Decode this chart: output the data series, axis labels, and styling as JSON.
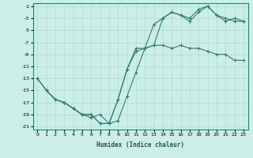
{
  "xlabel": "Humidex (Indice chaleur)",
  "ylabel": "",
  "bg_color": "#cceee8",
  "grid_color": "#aaddcc",
  "line_color": "#2e7d6e",
  "xlim": [
    -0.5,
    23.5
  ],
  "ylim": [
    -21.5,
    -0.5
  ],
  "xticks": [
    0,
    1,
    2,
    3,
    4,
    5,
    6,
    7,
    8,
    9,
    10,
    11,
    12,
    13,
    14,
    15,
    16,
    17,
    18,
    19,
    20,
    21,
    22,
    23
  ],
  "yticks": [
    -1,
    -3,
    -5,
    -7,
    -9,
    -11,
    -13,
    -15,
    -17,
    -19,
    -21
  ],
  "series1_x": [
    0,
    1,
    2,
    3,
    4,
    5,
    6,
    7,
    8,
    9,
    10,
    11,
    12,
    13,
    14,
    15,
    16,
    17,
    18,
    19,
    20,
    21,
    22,
    23
  ],
  "series1_y": [
    -13,
    -15,
    -16.5,
    -17,
    -18,
    -19,
    -19,
    -20.5,
    -20.5,
    -16.5,
    -11.5,
    -8,
    -8,
    -4,
    -3,
    -2,
    -2.5,
    -3,
    -1.5,
    -1,
    -2.5,
    -3,
    -3.5,
    -3.5
  ],
  "series2_x": [
    0,
    1,
    2,
    3,
    4,
    5,
    6,
    7,
    8,
    9,
    10,
    11,
    12,
    13,
    14,
    15,
    16,
    17,
    18,
    19,
    20,
    21,
    22,
    23
  ],
  "series2_y": [
    -13,
    -15,
    -16.5,
    -17,
    -18,
    -19,
    -19,
    -20.5,
    -20.5,
    -16.5,
    -11.5,
    -8.5,
    -8,
    -7.5,
    -7.5,
    -8,
    -7.5,
    -8,
    -8,
    -8.5,
    -9,
    -9,
    -10,
    -10
  ],
  "series3_x": [
    1,
    2,
    3,
    4,
    5,
    6,
    7,
    8,
    9,
    10,
    11,
    12,
    13,
    14,
    15,
    16,
    17,
    18,
    19,
    20,
    21,
    22,
    23
  ],
  "series3_y": [
    -15,
    -16.5,
    -17,
    -18,
    -19,
    -19.5,
    -19,
    -20.5,
    -20,
    -16,
    -12,
    -8,
    -7.5,
    -3,
    -2,
    -2.5,
    -3.5,
    -2,
    -1,
    -2.5,
    -3.5,
    -3,
    -3.5
  ],
  "marker": "+"
}
